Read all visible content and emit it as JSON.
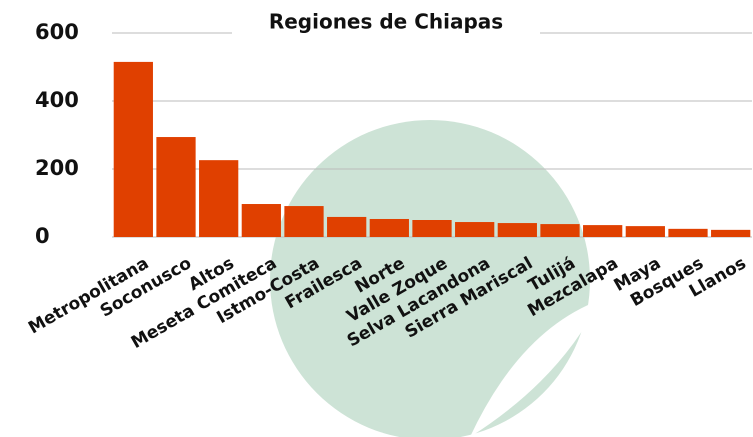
{
  "chart_data": {
    "type": "bar",
    "title": "Regiones de Chiapas",
    "categories": [
      "Metropolitana",
      "Soconusco",
      "Altos",
      "Meseta Comiteca",
      "Istmo-Costa",
      "Frailesca",
      "Norte",
      "Valle Zoque",
      "Selva Lacandona",
      "Sierra Mariscal",
      "Tulijá",
      "Mezcalapa",
      "Maya",
      "Bosques",
      "Llanos"
    ],
    "values": [
      515,
      294,
      226,
      97,
      91,
      59,
      53,
      50,
      44,
      41,
      38,
      35,
      32,
      24,
      21
    ],
    "color": "#e04000",
    "ylim": [
      0,
      600
    ],
    "yticks": [
      0,
      200,
      400,
      600
    ],
    "grid": true
  }
}
